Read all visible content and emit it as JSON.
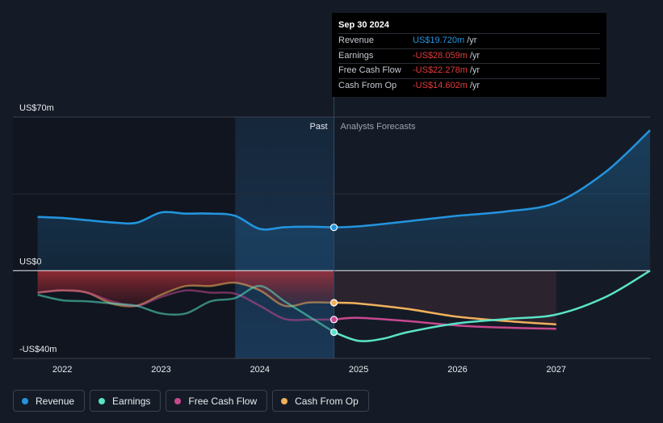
{
  "tooltip": {
    "date": "Sep 30 2024",
    "rows": [
      {
        "label": "Revenue",
        "value": "US$19.720m",
        "unit": "/yr",
        "tone": "pos"
      },
      {
        "label": "Earnings",
        "value": "-US$28.059m",
        "unit": "/yr",
        "tone": "neg"
      },
      {
        "label": "Free Cash Flow",
        "value": "-US$22.278m",
        "unit": "/yr",
        "tone": "neg"
      },
      {
        "label": "Cash From Op",
        "value": "-US$14.602m",
        "unit": "/yr",
        "tone": "neg"
      }
    ]
  },
  "chart_data": {
    "type": "line",
    "ylim": [
      -40,
      70
    ],
    "xlim": [
      2021.5,
      2027.95
    ],
    "y_tick_labels": [
      {
        "value": 70,
        "label": "US$70m"
      },
      {
        "value": 0,
        "label": "US$0"
      },
      {
        "value": -40,
        "label": "-US$40m"
      }
    ],
    "x_tick_labels": [
      {
        "value": 2022,
        "label": "2022"
      },
      {
        "value": 2023,
        "label": "2023"
      },
      {
        "value": 2024,
        "label": "2024"
      },
      {
        "value": 2025,
        "label": "2025"
      },
      {
        "value": 2026,
        "label": "2026"
      },
      {
        "value": 2027,
        "label": "2027"
      }
    ],
    "divider_x": 2024.75,
    "highlight_start_x": 2023.75,
    "past_label": "Past",
    "forecast_label": "Analysts Forecasts",
    "legend_position": "bottom-left",
    "series": [
      {
        "name": "Revenue",
        "color": "#2394df",
        "past": [
          [
            2021.75,
            24.5
          ],
          [
            2022.0,
            24.0
          ],
          [
            2022.25,
            23.0
          ],
          [
            2022.5,
            22.0
          ],
          [
            2022.75,
            21.8
          ],
          [
            2023.0,
            26.5
          ],
          [
            2023.25,
            26.0
          ],
          [
            2023.5,
            26.0
          ],
          [
            2023.75,
            25.0
          ],
          [
            2024.0,
            19.0
          ],
          [
            2024.25,
            19.8
          ],
          [
            2024.5,
            20.0
          ],
          [
            2024.75,
            19.72
          ]
        ],
        "forecast": [
          [
            2024.75,
            19.72
          ],
          [
            2025.0,
            20.2
          ],
          [
            2025.5,
            22.5
          ],
          [
            2026.0,
            25.0
          ],
          [
            2026.5,
            27.0
          ],
          [
            2027.0,
            31.0
          ],
          [
            2027.5,
            45.0
          ],
          [
            2027.95,
            64.0
          ]
        ]
      },
      {
        "name": "Earnings",
        "color": "#5ae3c7",
        "past": [
          [
            2021.75,
            -11.0
          ],
          [
            2022.0,
            -13.5
          ],
          [
            2022.25,
            -14.0
          ],
          [
            2022.5,
            -15.0
          ],
          [
            2022.75,
            -16.0
          ],
          [
            2023.0,
            -19.5
          ],
          [
            2023.25,
            -19.5
          ],
          [
            2023.5,
            -14.0
          ],
          [
            2023.75,
            -12.5
          ],
          [
            2024.0,
            -7.0
          ],
          [
            2024.25,
            -14.0
          ],
          [
            2024.5,
            -21.0
          ],
          [
            2024.75,
            -28.059
          ]
        ],
        "forecast": [
          [
            2024.75,
            -28.059
          ],
          [
            2025.0,
            -32.0
          ],
          [
            2025.25,
            -31.0
          ],
          [
            2025.5,
            -28.0
          ],
          [
            2026.0,
            -24.0
          ],
          [
            2026.5,
            -22.0
          ],
          [
            2027.0,
            -20.0
          ],
          [
            2027.5,
            -12.0
          ],
          [
            2027.95,
            0.0
          ]
        ]
      },
      {
        "name": "Free Cash Flow",
        "color": "#c7488f",
        "past": [
          [
            2021.75,
            -10.0
          ],
          [
            2022.0,
            -9.0
          ],
          [
            2022.25,
            -10.0
          ],
          [
            2022.5,
            -14.0
          ],
          [
            2022.75,
            -16.0
          ],
          [
            2023.0,
            -12.0
          ],
          [
            2023.25,
            -9.0
          ],
          [
            2023.5,
            -10.0
          ],
          [
            2023.75,
            -10.5
          ],
          [
            2024.0,
            -16.0
          ],
          [
            2024.25,
            -22.0
          ],
          [
            2024.5,
            -22.3
          ],
          [
            2024.75,
            -22.278
          ]
        ],
        "forecast": [
          [
            2024.75,
            -22.278
          ],
          [
            2025.0,
            -21.5
          ],
          [
            2025.5,
            -23.0
          ],
          [
            2026.0,
            -25.0
          ],
          [
            2026.5,
            -26.0
          ],
          [
            2027.0,
            -26.5
          ]
        ]
      },
      {
        "name": "Cash From Op",
        "color": "#f0b15c",
        "past": [
          [
            2021.75,
            -10.0
          ],
          [
            2022.0,
            -9.0
          ],
          [
            2022.25,
            -10.0
          ],
          [
            2022.5,
            -15.0
          ],
          [
            2022.75,
            -16.0
          ],
          [
            2023.0,
            -11.0
          ],
          [
            2023.25,
            -7.0
          ],
          [
            2023.5,
            -7.0
          ],
          [
            2023.75,
            -5.5
          ],
          [
            2024.0,
            -9.0
          ],
          [
            2024.25,
            -16.0
          ],
          [
            2024.5,
            -14.5
          ],
          [
            2024.75,
            -14.602
          ]
        ],
        "forecast": [
          [
            2024.75,
            -14.602
          ],
          [
            2025.0,
            -15.0
          ],
          [
            2025.5,
            -17.5
          ],
          [
            2026.0,
            -21.0
          ],
          [
            2026.5,
            -23.0
          ],
          [
            2027.0,
            -24.5
          ]
        ]
      }
    ]
  },
  "legend": [
    {
      "label": "Revenue",
      "color": "#2394df"
    },
    {
      "label": "Earnings",
      "color": "#5ae3c7"
    },
    {
      "label": "Free Cash Flow",
      "color": "#c7488f"
    },
    {
      "label": "Cash From Op",
      "color": "#f0b15c"
    }
  ]
}
